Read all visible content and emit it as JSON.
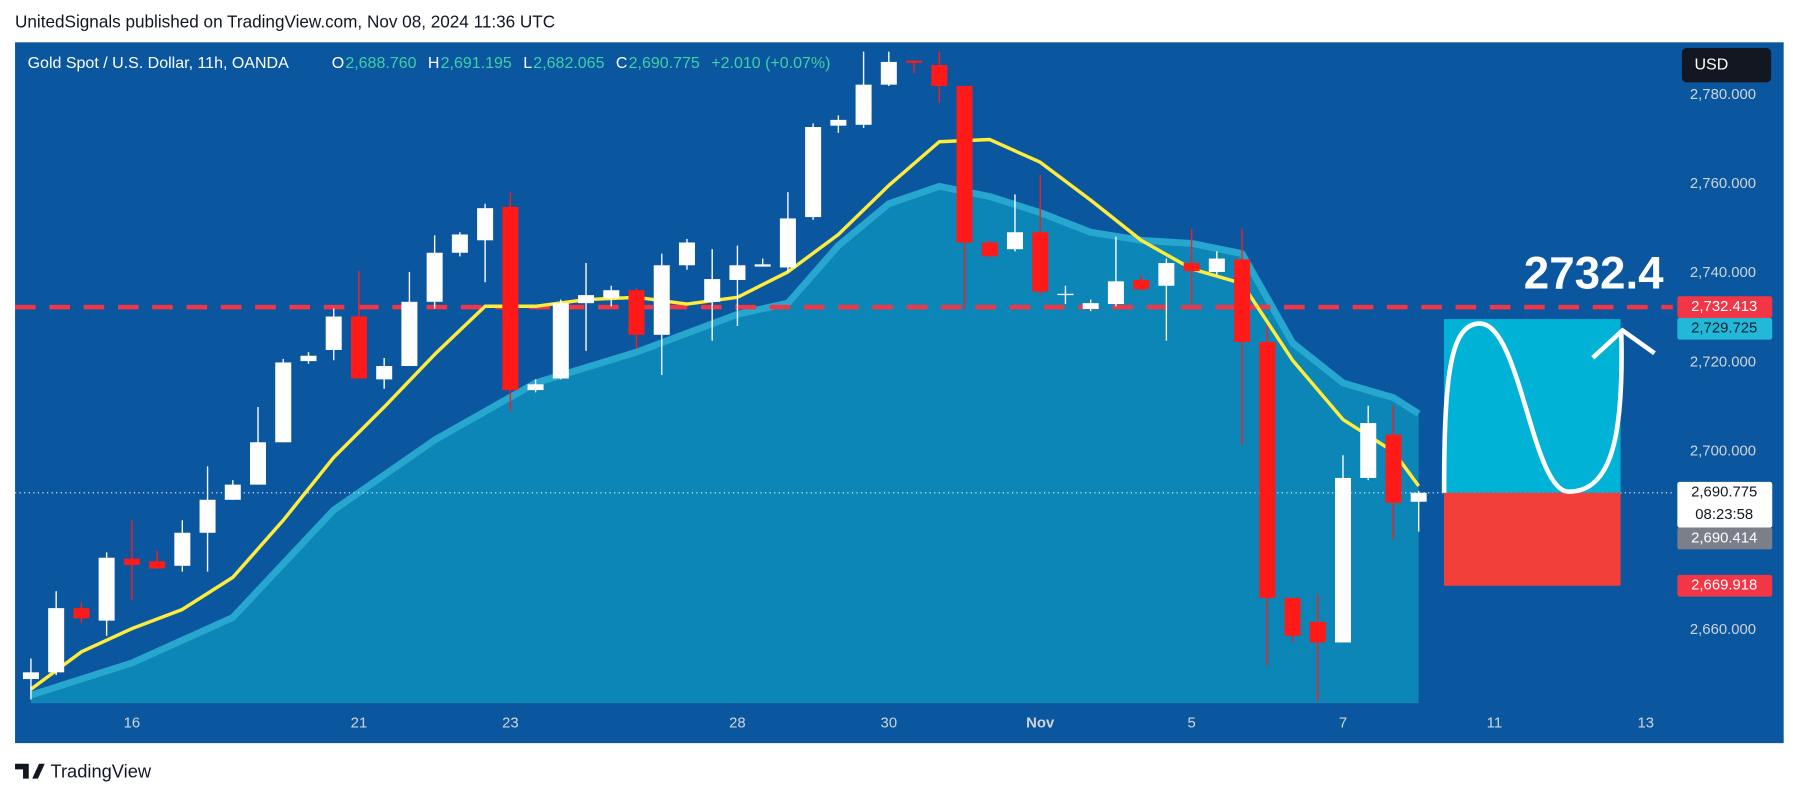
{
  "header": "UnitedSignals published on TradingView.com, Nov 08, 2024 11:36 UTC",
  "legend": {
    "symbol": "Gold Spot / U.S. Dollar, 11h, OANDA",
    "items": [
      {
        "key": "O",
        "value": "2,688.760"
      },
      {
        "key": "H",
        "value": "2,691.195"
      },
      {
        "key": "L",
        "value": "2,682.065"
      },
      {
        "key": "C",
        "value": "2,690.775"
      }
    ],
    "change": "+2.010 (+0.07%)"
  },
  "currency": "USD",
  "footer": "TradingView",
  "chart_data": {
    "type": "candlestick",
    "x": [
      0,
      1,
      2,
      3,
      4,
      5,
      6,
      7,
      8,
      9,
      10,
      11,
      12,
      13,
      14,
      15,
      16,
      17,
      18,
      19,
      20,
      21,
      22,
      23,
      24,
      25,
      26,
      27,
      28,
      29,
      30,
      31,
      32,
      33,
      34,
      35,
      36,
      37,
      38,
      39,
      40,
      41,
      42,
      43,
      44,
      45,
      46,
      47,
      48,
      49,
      50,
      51,
      52,
      53,
      54,
      55
    ],
    "open": [
      2649,
      2650.5,
      2664.9,
      2662.1,
      2676,
      2675.4,
      2674.4,
      2681.8,
      2689.2,
      2692.6,
      2702.1,
      2720.3,
      2722.8,
      2730.3,
      2716.2,
      2719.2,
      2733.6,
      2744.6,
      2747.4,
      2754.9,
      2713.8,
      2716.4,
      2733.3,
      2734.4,
      2736.2,
      2726.2,
      2741.8,
      2733.6,
      2738.5,
      2741.5,
      2741.3,
      2752.6,
      2773.1,
      2773.3,
      2782.3,
      2787.7,
      2786.7,
      2782,
      2746.9,
      2745.4,
      2749.2,
      2735.1,
      2732,
      2733.1,
      2738.5,
      2737.2,
      2742.3,
      2740.3,
      2743.1,
      2724.6,
      2667.2,
      2661.8,
      2657.2,
      2694.1,
      2703.8,
      2688.76
    ],
    "high": [
      2653.6,
      2668.7,
      2666.2,
      2677.4,
      2684.6,
      2677.7,
      2684.6,
      2696.7,
      2693.6,
      2710,
      2720.8,
      2722.3,
      2732.1,
      2740.5,
      2721,
      2740.3,
      2748.5,
      2749.2,
      2755.6,
      2758.2,
      2716.2,
      2734.1,
      2742.3,
      2737.2,
      2736.7,
      2744.4,
      2747.7,
      2745.4,
      2746.2,
      2743.3,
      2758.2,
      2773.6,
      2775.4,
      2789.7,
      2789.7,
      2787.7,
      2789.7,
      2782,
      2747.4,
      2757.7,
      2762.1,
      2737.2,
      2734.1,
      2748.2,
      2739.7,
      2743.3,
      2750,
      2744.9,
      2750,
      2728.2,
      2667.2,
      2668,
      2699.2,
      2710.3,
      2710.3,
      2691.195
    ],
    "low": [
      2644.4,
      2649.9,
      2661.5,
      2658.7,
      2666.7,
      2673.8,
      2673.1,
      2673.1,
      2689.2,
      2692.6,
      2702.1,
      2719.7,
      2720.5,
      2716.4,
      2714.1,
      2719.2,
      2732.1,
      2743.8,
      2738,
      2709,
      2713.3,
      2716.2,
      2722.6,
      2732.6,
      2723.1,
      2717.2,
      2740.8,
      2724.9,
      2728.2,
      2741.5,
      2740.3,
      2752,
      2771.5,
      2772.6,
      2782,
      2784.9,
      2778.2,
      2732,
      2743.8,
      2744.9,
      2735.1,
      2733.1,
      2731.5,
      2732.6,
      2736.2,
      2724.9,
      2733.3,
      2739.7,
      2701.5,
      2652,
      2657.2,
      2644,
      2657.2,
      2693.6,
      2680.3,
      2682.065
    ],
    "close": [
      2650.5,
      2664.9,
      2662.6,
      2676.2,
      2674.6,
      2673.8,
      2681.8,
      2689.2,
      2692.6,
      2702.1,
      2720,
      2721.5,
      2730.3,
      2716.4,
      2719.2,
      2733.6,
      2744.6,
      2748.7,
      2754.6,
      2713.8,
      2715.1,
      2733.3,
      2735.1,
      2736.2,
      2726.2,
      2741.8,
      2746.9,
      2738.7,
      2741.8,
      2742,
      2752.3,
      2772.8,
      2774.4,
      2782.3,
      2787.4,
      2787.2,
      2782,
      2746.9,
      2743.8,
      2749.2,
      2735.9,
      2735.4,
      2733.3,
      2738.2,
      2736.4,
      2742.3,
      2740.5,
      2743.3,
      2724.6,
      2667.2,
      2658.7,
      2657.2,
      2694.1,
      2706.4,
      2688.5,
      2690.775
    ],
    "up_color": "#ffffff",
    "down_color": "#ff1a1a",
    "xlim": [
      -0.63,
      65.07
    ],
    "xticks": [
      {
        "value": 4,
        "label": "16"
      },
      {
        "value": 13,
        "label": "21"
      },
      {
        "value": 19,
        "label": "23"
      },
      {
        "value": 28,
        "label": "28"
      },
      {
        "value": 34,
        "label": "30"
      },
      {
        "value": 40,
        "label": "Nov"
      },
      {
        "value": 46,
        "label": "5"
      },
      {
        "value": 52,
        "label": "7"
      },
      {
        "value": 58,
        "label": "11"
      },
      {
        "value": 64,
        "label": "13"
      }
    ],
    "ylim": [
      2643.6,
      2791.8
    ],
    "yticks": [
      {
        "value": 2660,
        "label": "2,660.000"
      },
      {
        "value": 2700,
        "label": "2,700.000"
      },
      {
        "value": 2720,
        "label": "2,720.000"
      },
      {
        "value": 2740,
        "label": "2,740.000"
      },
      {
        "value": 2760,
        "label": "2,760.000"
      },
      {
        "value": 2780,
        "label": "2,780.000"
      }
    ],
    "ema": {
      "color": "#ffeb3b",
      "x": [
        0,
        2,
        4,
        6,
        8,
        10,
        12,
        14,
        16,
        18,
        20,
        22,
        24,
        26,
        28,
        30,
        32,
        34,
        36,
        38,
        40,
        42,
        44,
        46,
        48,
        50,
        52,
        54,
        55
      ],
      "values": [
        2646.7,
        2655.1,
        2660.3,
        2664.6,
        2671.8,
        2684.6,
        2698.7,
        2710,
        2721.8,
        2732.6,
        2732.6,
        2734.1,
        2734.6,
        2733.1,
        2734.6,
        2740.3,
        2748.7,
        2759.7,
        2769.5,
        2770,
        2764.9,
        2756.4,
        2747.4,
        2741,
        2737.7,
        2720.5,
        2707.2,
        2700,
        2692.3
      ]
    },
    "band": {
      "color": "#0b86b6",
      "edge_color": "#27a6cf",
      "x": [
        0,
        4,
        8,
        12,
        16,
        20,
        24,
        28,
        30,
        32,
        34,
        36,
        38,
        40,
        42,
        44,
        46,
        48,
        50,
        52,
        54,
        55
      ],
      "values": [
        2645.4,
        2652.6,
        2662.8,
        2686.9,
        2702.6,
        2715.4,
        2722.3,
        2730.8,
        2733.3,
        2746.2,
        2755.6,
        2759.5,
        2757.2,
        2753.6,
        2749.2,
        2747.4,
        2746.7,
        2744.4,
        2724.4,
        2715.4,
        2712.1,
        2708.5
      ]
    },
    "lines": [
      {
        "value": 2732.413,
        "color": "#f23645",
        "style": "dashed"
      },
      {
        "value": 2690.775,
        "color": "#ffffff",
        "style": "dotted"
      }
    ],
    "price_labels": [
      {
        "value": 2732.413,
        "label": "2,732.413",
        "color": "#f23645",
        "text_color": "#ffffff"
      },
      {
        "value": 2729.725,
        "label": "2,729.725",
        "color": "#22b8d8",
        "text_color": "#0b1e33"
      },
      {
        "value": 2690.775,
        "label": "2,690.775",
        "sublabel": "08:23:58",
        "color": "#ffffff",
        "text_color": "#131722"
      },
      {
        "value": 2690.414,
        "label": "2,690.414",
        "color": "#7a7f8a",
        "text_color": "#ffffff"
      },
      {
        "value": 2669.918,
        "label": "2,669.918",
        "color": "#f23645",
        "text_color": "#ffffff"
      }
    ],
    "position": {
      "x": [
        56,
        63
      ],
      "target": 2729.725,
      "entry": 2690.775,
      "stop": 2669.918,
      "target_color": "#00b3d6",
      "stop_color": "#f23f3a"
    },
    "annotation": "2732.4"
  }
}
